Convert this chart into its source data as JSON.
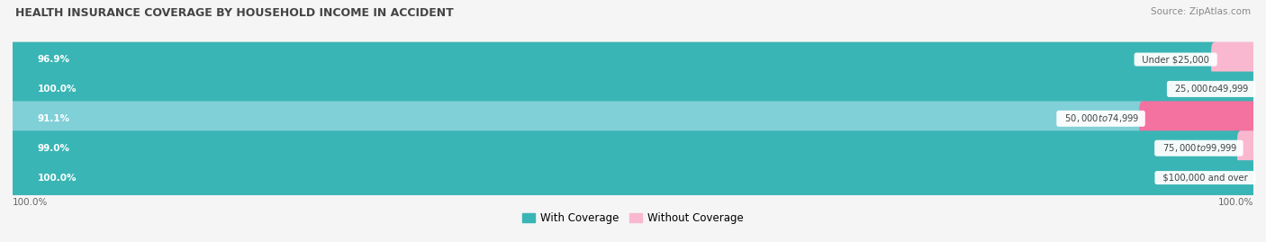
{
  "title": "HEALTH INSURANCE COVERAGE BY HOUSEHOLD INCOME IN ACCIDENT",
  "source": "Source: ZipAtlas.com",
  "categories": [
    "Under $25,000",
    "$25,000 to $49,999",
    "$50,000 to $74,999",
    "$75,000 to $99,999",
    "$100,000 and over"
  ],
  "with_coverage": [
    96.9,
    100.0,
    91.1,
    99.0,
    100.0
  ],
  "without_coverage": [
    3.1,
    0.0,
    8.9,
    1.0,
    0.0
  ],
  "color_with_dark": "#3ab5b5",
  "color_with_light": "#80d0d8",
  "color_without": "#f472a0",
  "color_without_light": "#f9b8cf",
  "bg_color": "#f5f5f5",
  "bar_bg_color": "#e8e8ec",
  "bar_height": 0.58,
  "total_width": 100,
  "legend_with": "With Coverage",
  "legend_without": "Without Coverage",
  "x_tick_left": "100.0%",
  "x_tick_right": "100.0%"
}
